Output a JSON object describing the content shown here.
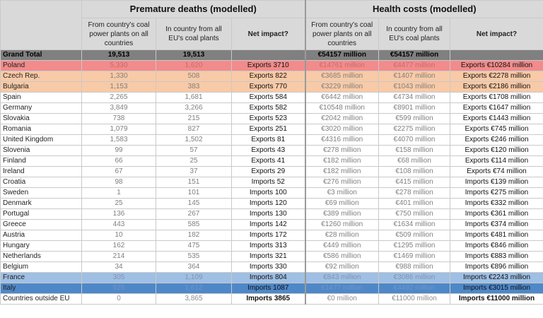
{
  "headers": {
    "deaths_group": "Premature deaths (modelled)",
    "costs_group": "Health costs (modelled)",
    "from_plants": "From country's coal power plants on all countries",
    "in_country": "In country from all EU's coal plants",
    "net_impact": "Net impact?"
  },
  "total": {
    "label": "Grand Total",
    "deaths_from": "19,513",
    "deaths_in": "19,513",
    "deaths_net": "",
    "cost_from": "€54157 million",
    "cost_in": "€54157 million",
    "cost_net": ""
  },
  "rows": [
    {
      "country": "Poland",
      "deaths_from": "5,330",
      "deaths_in": "1,620",
      "deaths_net": "Exports 3710",
      "cost_from": "€14761 million",
      "cost_in": "€4477 million",
      "cost_net": "Exports €10284 million"
    },
    {
      "country": "Czech Rep.",
      "deaths_from": "1,330",
      "deaths_in": "508",
      "deaths_net": "Exports 822",
      "cost_from": "€3685 million",
      "cost_in": "€1407 million",
      "cost_net": "Exports €2278 million"
    },
    {
      "country": "Bulgaria",
      "deaths_from": "1,153",
      "deaths_in": "383",
      "deaths_net": "Exports 770",
      "cost_from": "€3229 million",
      "cost_in": "€1043 million",
      "cost_net": "Exports €2186 million"
    },
    {
      "country": "Spain",
      "deaths_from": "2,265",
      "deaths_in": "1,681",
      "deaths_net": "Exports 584",
      "cost_from": "€6442 million",
      "cost_in": "€4734 million",
      "cost_net": "Exports €1708 million"
    },
    {
      "country": "Germany",
      "deaths_from": "3,849",
      "deaths_in": "3,266",
      "deaths_net": "Exports 582",
      "cost_from": "€10548 million",
      "cost_in": "€8901 million",
      "cost_net": "Exports €1647 million"
    },
    {
      "country": "Slovakia",
      "deaths_from": "738",
      "deaths_in": "215",
      "deaths_net": "Exports 523",
      "cost_from": "€2042 million",
      "cost_in": "€599 million",
      "cost_net": "Exports €1443 million"
    },
    {
      "country": "Romania",
      "deaths_from": "1,079",
      "deaths_in": "827",
      "deaths_net": "Exports 251",
      "cost_from": "€3020 million",
      "cost_in": "€2275 million",
      "cost_net": "Exports €745 million"
    },
    {
      "country": "United Kingdom",
      "deaths_from": "1,583",
      "deaths_in": "1,502",
      "deaths_net": "Exports 81",
      "cost_from": "€4316 million",
      "cost_in": "€4070 million",
      "cost_net": "Exports €246 million"
    },
    {
      "country": "Slovenia",
      "deaths_from": "99",
      "deaths_in": "57",
      "deaths_net": "Exports 43",
      "cost_from": "€278 million",
      "cost_in": "€158 million",
      "cost_net": "Exports €120 million"
    },
    {
      "country": "Finland",
      "deaths_from": "66",
      "deaths_in": "25",
      "deaths_net": "Exports 41",
      "cost_from": "€182 million",
      "cost_in": "€68 million",
      "cost_net": "Exports €114 million"
    },
    {
      "country": "Ireland",
      "deaths_from": "67",
      "deaths_in": "37",
      "deaths_net": "Exports 29",
      "cost_from": "€182 million",
      "cost_in": "€108 million",
      "cost_net": "Exports €74 million"
    },
    {
      "country": "Croatia",
      "deaths_from": "98",
      "deaths_in": "151",
      "deaths_net": "Imports 52",
      "cost_from": "€276 million",
      "cost_in": "€415 million",
      "cost_net": "Imports €139 million"
    },
    {
      "country": "Sweden",
      "deaths_from": "1",
      "deaths_in": "101",
      "deaths_net": "Imports 100",
      "cost_from": "€3 million",
      "cost_in": "€278 million",
      "cost_net": "Imports €275 million"
    },
    {
      "country": "Denmark",
      "deaths_from": "25",
      "deaths_in": "145",
      "deaths_net": "Imports 120",
      "cost_from": "€69 million",
      "cost_in": "€401 million",
      "cost_net": "Imports €332 million"
    },
    {
      "country": "Portugal",
      "deaths_from": "136",
      "deaths_in": "267",
      "deaths_net": "Imports 130",
      "cost_from": "€389 million",
      "cost_in": "€750 million",
      "cost_net": "Imports €361 million"
    },
    {
      "country": "Greece",
      "deaths_from": "443",
      "deaths_in": "585",
      "deaths_net": "Imports 142",
      "cost_from": "€1260 million",
      "cost_in": "€1634 million",
      "cost_net": "Imports €374 million"
    },
    {
      "country": "Austria",
      "deaths_from": "10",
      "deaths_in": "182",
      "deaths_net": "Imports 172",
      "cost_from": "€28 million",
      "cost_in": "€509 million",
      "cost_net": "Imports €481 million"
    },
    {
      "country": "Hungary",
      "deaths_from": "162",
      "deaths_in": "475",
      "deaths_net": "Imports 313",
      "cost_from": "€449 million",
      "cost_in": "€1295 million",
      "cost_net": "Imports €846 million"
    },
    {
      "country": "Netherlands",
      "deaths_from": "214",
      "deaths_in": "535",
      "deaths_net": "Imports 321",
      "cost_from": "€586 million",
      "cost_in": "€1469 million",
      "cost_net": "Imports €883 million"
    },
    {
      "country": "Belgium",
      "deaths_from": "34",
      "deaths_in": "364",
      "deaths_net": "Imports 330",
      "cost_from": "€92 million",
      "cost_in": "€988 million",
      "cost_net": "Imports €896 million"
    },
    {
      "country": "France",
      "deaths_from": "305",
      "deaths_in": "1,109",
      "deaths_net": "Imports 804",
      "cost_from": "€843 million",
      "cost_in": "€3086 million",
      "cost_net": "Imports €2243 million"
    },
    {
      "country": "Italy",
      "deaths_from": "525",
      "deaths_in": "1,612",
      "deaths_net": "Imports 1087",
      "cost_from": "€1477 million",
      "cost_in": "€4492 million",
      "cost_net": "Imports €3015 million"
    },
    {
      "country": "Countries outside EU",
      "deaths_from": "0",
      "deaths_in": "3,865",
      "deaths_net": "Imports 3865",
      "cost_from": "€0 million",
      "cost_in": "€11000 million",
      "cost_net": "Imports €11000 million"
    }
  ],
  "row_colors": {
    "poland": "#f28b8b",
    "czech_bulgaria": "#f8caa7",
    "france": "#9fbfe4",
    "italy": "#4f88c8",
    "total": "#808080",
    "header": "#d9d9d9"
  }
}
